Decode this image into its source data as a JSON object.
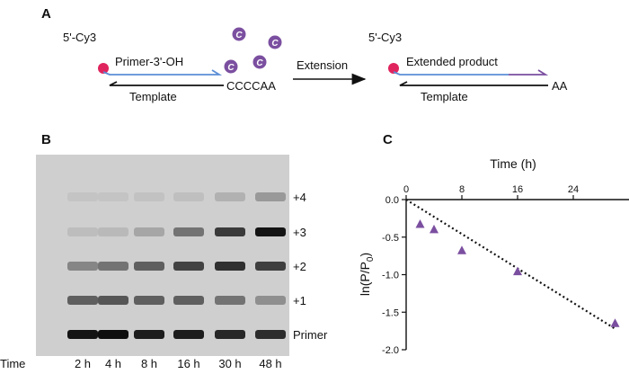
{
  "panels": {
    "a": "A",
    "b": "B",
    "c": "C"
  },
  "scheme": {
    "left": {
      "five_prime": "5'-Cy3",
      "primer": "Primer-3'-OH",
      "template": "Template",
      "template_end": "CCCCAA"
    },
    "arrow_label": "Extension",
    "right": {
      "five_prime": "5'-Cy3",
      "product": "Extended product",
      "template": "Template",
      "template_end": "AA"
    },
    "nucleotide_letter": "C",
    "colors": {
      "dye": "#e0245e",
      "primer": "#5b8ed6",
      "nucleotide": "#7b4fa0"
    }
  },
  "gel": {
    "time_label": "Time",
    "lanes": [
      "2 h",
      "4 h",
      "8 h",
      "16 h",
      "30 h",
      "48 h"
    ],
    "bands": [
      "+4",
      "+3",
      "+2",
      "+1",
      "Primer"
    ],
    "intensity": {
      "+4": [
        0.02,
        0.02,
        0.03,
        0.05,
        0.12,
        0.25
      ],
      "+3": [
        0.06,
        0.08,
        0.18,
        0.45,
        0.75,
        0.95
      ],
      "+2": [
        0.35,
        0.45,
        0.55,
        0.7,
        0.8,
        0.72
      ],
      "+1": [
        0.55,
        0.6,
        0.55,
        0.55,
        0.45,
        0.3
      ],
      "Primer": [
        0.95,
        0.98,
        0.9,
        0.9,
        0.85,
        0.82
      ]
    }
  },
  "chart_data": {
    "type": "scatter",
    "title": "",
    "xlabel": "Time (h)",
    "ylabel": "ln(P/P",
    "ylabel_sub": "0",
    "ylabel_close": ")",
    "xlim": [
      0,
      32
    ],
    "ylim": [
      -2.0,
      0.0
    ],
    "x_ticks": [
      0,
      8,
      16,
      24
    ],
    "y_ticks": [
      0.0,
      -0.5,
      -1.0,
      -1.5,
      -2.0
    ],
    "y_tick_labels": [
      "0.0",
      "-0.5",
      "-1.0",
      "-1.5",
      "-2.0"
    ],
    "marker_color": "#7b4fa0",
    "series": [
      {
        "x": [
          2,
          4,
          8,
          16,
          30
        ],
        "y": [
          -0.33,
          -0.4,
          -0.68,
          -0.96,
          -1.65
        ]
      }
    ],
    "fit_line": {
      "x": [
        0,
        30
      ],
      "y": [
        0.0,
        -1.72
      ],
      "style": "dotted"
    }
  }
}
